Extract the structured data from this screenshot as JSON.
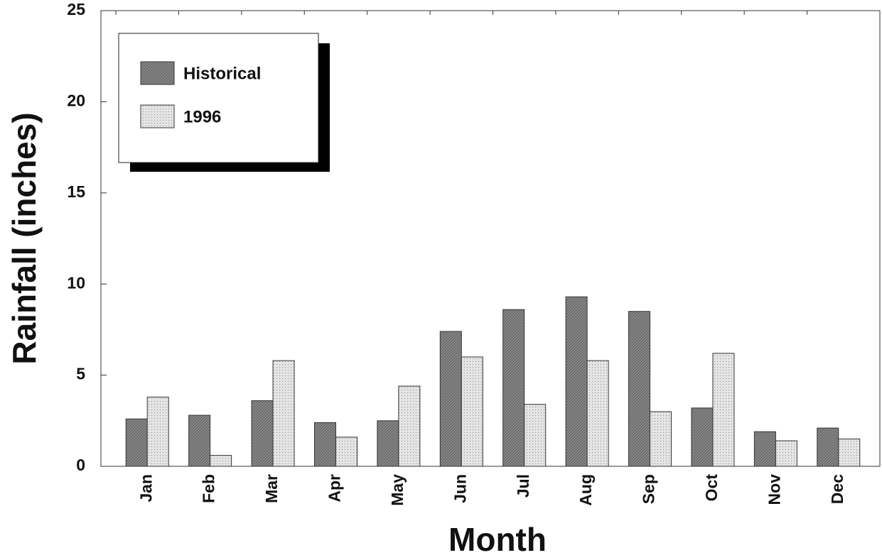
{
  "chart_data": {
    "type": "bar",
    "categories": [
      "Jan",
      "Feb",
      "Mar",
      "Apr",
      "May",
      "Jun",
      "Jul",
      "Aug",
      "Sep",
      "Oct",
      "Nov",
      "Dec"
    ],
    "series": [
      {
        "name": "Historical",
        "color": "#8a8a8a",
        "values": [
          2.6,
          2.8,
          3.6,
          2.4,
          2.5,
          7.4,
          8.6,
          9.3,
          8.5,
          3.2,
          1.9,
          2.1
        ]
      },
      {
        "name": "1996",
        "color": "#e4e4e4",
        "values": [
          3.8,
          0.6,
          5.8,
          1.6,
          4.4,
          6.0,
          3.4,
          5.8,
          3.0,
          6.2,
          1.4,
          1.5
        ]
      }
    ],
    "xlabel": "Month",
    "ylabel": "Rainfall (inches)",
    "ylim": [
      0,
      25
    ],
    "yticks": [
      0,
      5,
      10,
      15,
      20,
      25
    ],
    "legend": "upper left"
  }
}
